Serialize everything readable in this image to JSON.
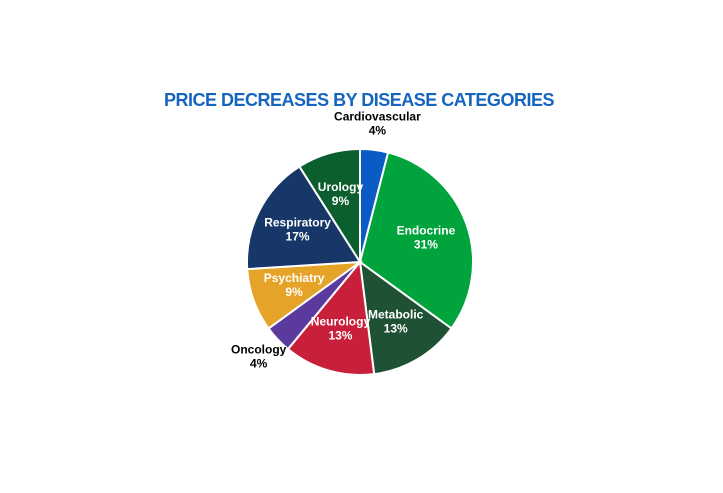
{
  "chart_data": {
    "type": "pie",
    "title": "PRICE DECREASES BY DISEASE CATEGORIES",
    "categories": [
      "Cardiovascular",
      "Endocrine",
      "Metabolic",
      "Neurology",
      "Oncology",
      "Psychiatry",
      "Respiratory",
      "Urology"
    ],
    "values": [
      4,
      31,
      13,
      13,
      4,
      9,
      17,
      9
    ],
    "value_labels": [
      "4%",
      "31%",
      "13%",
      "13%",
      "4%",
      "9%",
      "17%",
      "9%"
    ],
    "colors": [
      "#0a5bc4",
      "#00a33c",
      "#1f5135",
      "#c8203a",
      "#5b3a9e",
      "#e5a327",
      "#163767",
      "#0b5f2e"
    ]
  }
}
